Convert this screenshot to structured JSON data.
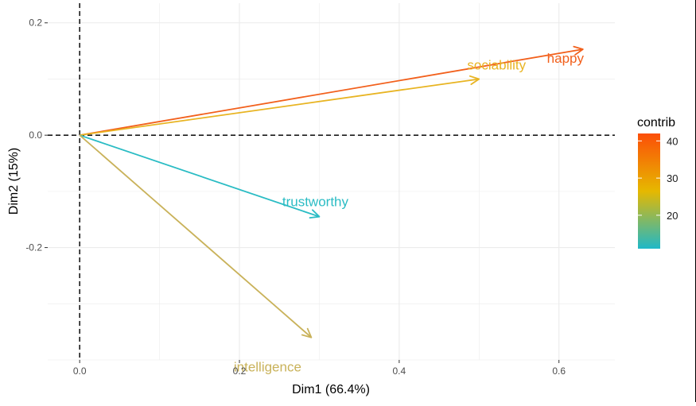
{
  "chart_data": {
    "type": "biplot-arrows",
    "xlabel": "Dim1 (66.4%)",
    "ylabel": "Dim2 (15%)",
    "xlim": [
      -0.04,
      0.67
    ],
    "ylim": [
      -0.4,
      0.235
    ],
    "x_ticks": [
      0.0,
      0.2,
      0.4,
      0.6
    ],
    "x_tick_labels": [
      "0.0",
      "0.2",
      "0.4",
      "0.6"
    ],
    "y_ticks": [
      0.2,
      0.0,
      -0.2
    ],
    "y_tick_labels": [
      "0.2",
      "0.0",
      "-0.2"
    ],
    "grid": true,
    "reference_lines": {
      "x": 0,
      "y": 0,
      "style": "dashed"
    },
    "variables": [
      {
        "name": "happy",
        "x": 0.63,
        "y": 0.153,
        "contrib": 42,
        "color": "#f2601c"
      },
      {
        "name": "sociability",
        "x": 0.5,
        "y": 0.1,
        "contrib": 31,
        "color": "#e8b422"
      },
      {
        "name": "trustworthy",
        "x": 0.3,
        "y": -0.145,
        "contrib": 13,
        "color": "#2abcc4"
      },
      {
        "name": "intelligence",
        "x": 0.29,
        "y": -0.36,
        "contrib": 21,
        "color": "#c9b25a"
      }
    ],
    "legend": {
      "title": "contrib",
      "position": "right",
      "range": [
        11,
        42
      ],
      "ticks": [
        20,
        30,
        40
      ],
      "tick_labels": [
        "20",
        "30",
        "40"
      ],
      "gradient_colors": [
        "#1fb8c8",
        "#e6b800",
        "#fc4e08"
      ]
    }
  }
}
